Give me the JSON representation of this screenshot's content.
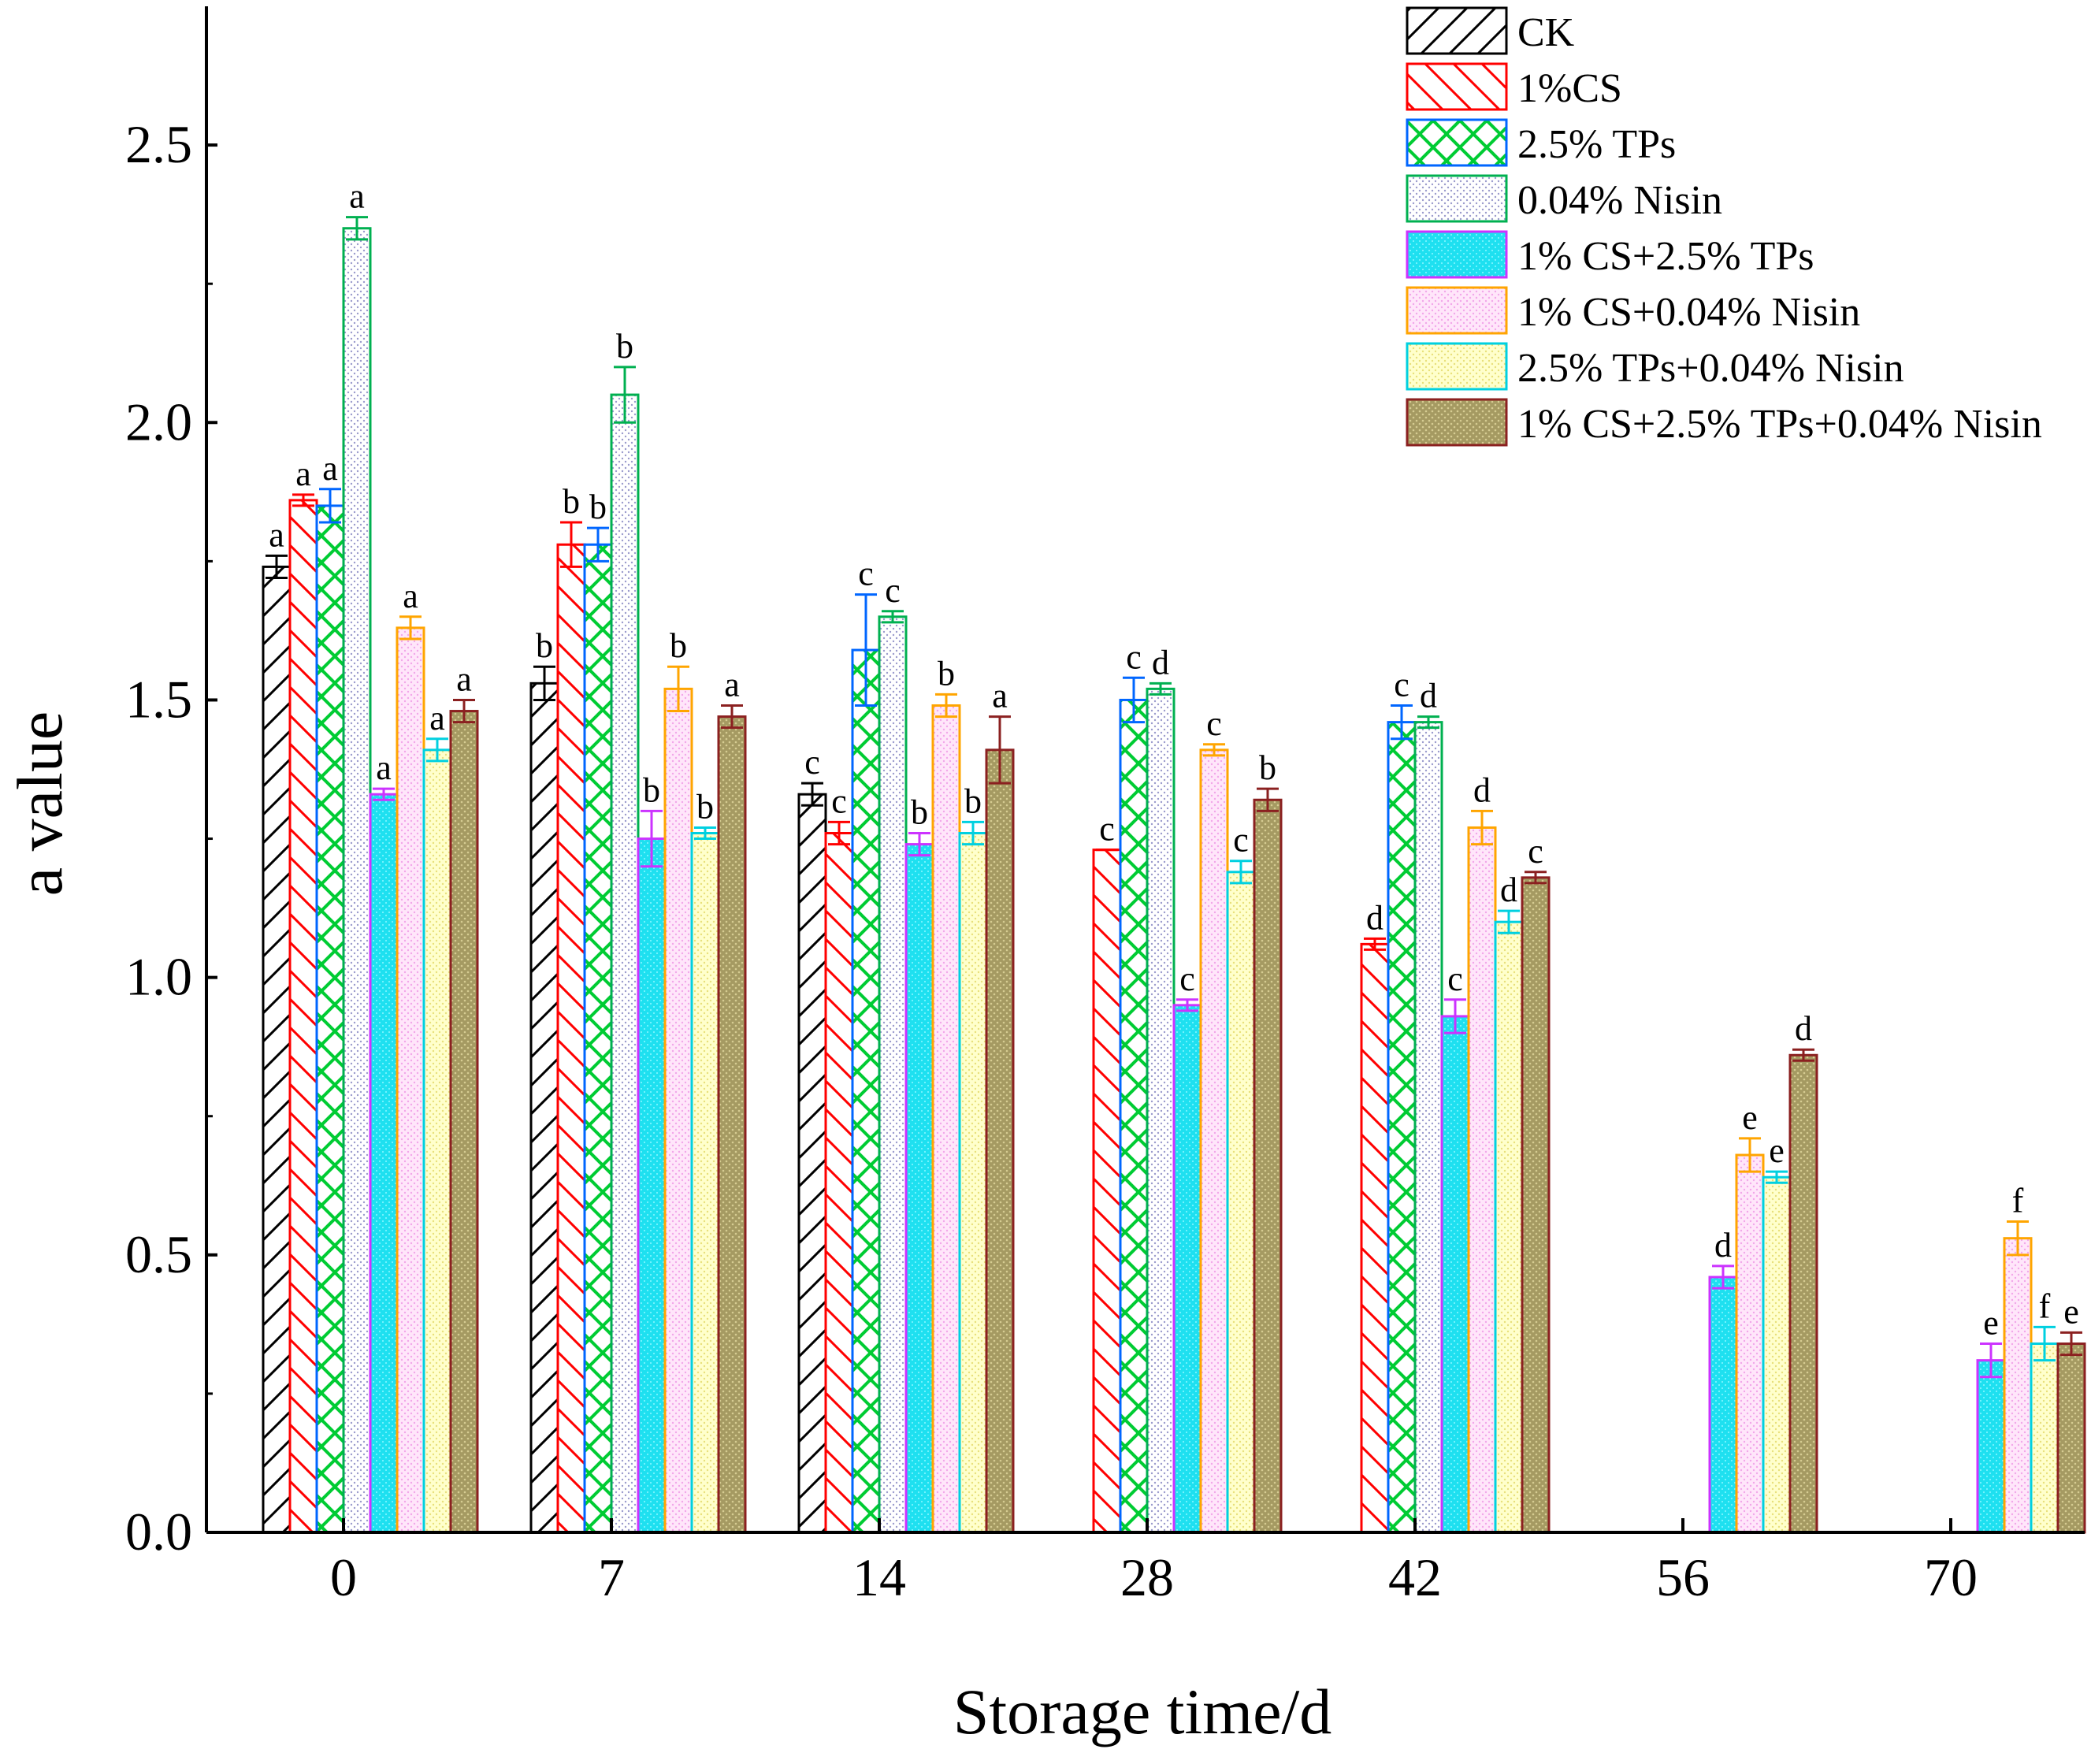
{
  "chart_data": {
    "type": "bar",
    "title": "",
    "xlabel": "Storage time/d",
    "ylabel": "a value",
    "ylim": [
      0,
      2.75
    ],
    "yticks": [
      "0.0",
      "0.5",
      "1.0",
      "1.5",
      "2.0",
      "2.5"
    ],
    "categories": [
      "0",
      "7",
      "14",
      "28",
      "42",
      "56",
      "70"
    ],
    "legend_position": "top-right",
    "series": [
      {
        "name": "CK",
        "color": "#000000",
        "pattern": "diag-right",
        "values": [
          1.74,
          1.53,
          1.33,
          null,
          null,
          null,
          null
        ],
        "errors": [
          0.02,
          0.03,
          0.02,
          null,
          null,
          null,
          null
        ],
        "letters": [
          "a",
          "b",
          "c",
          null,
          null,
          null,
          null
        ]
      },
      {
        "name": "1%CS",
        "color": "#ff0000",
        "pattern": "diag-left",
        "values": [
          1.86,
          1.78,
          1.26,
          1.23,
          1.06,
          null,
          null
        ],
        "errors": [
          0.01,
          0.04,
          0.02,
          0.0,
          0.01,
          null,
          null
        ],
        "letters": [
          "a",
          "b",
          "c",
          "c",
          "d",
          null,
          null
        ]
      },
      {
        "name": "2.5% TPs",
        "color": "#0066ff",
        "pattern": "cross",
        "values": [
          1.85,
          1.78,
          1.59,
          1.5,
          1.46,
          null,
          null
        ],
        "errors": [
          0.03,
          0.03,
          0.1,
          0.04,
          0.03,
          null,
          null
        ],
        "letters": [
          "a",
          "b",
          "c",
          "c",
          "c",
          null,
          null
        ]
      },
      {
        "name": "0.04% Nisin",
        "color": "#00b050",
        "pattern": "dots",
        "values": [
          2.35,
          2.05,
          1.65,
          1.52,
          1.46,
          null,
          null
        ],
        "errors": [
          0.02,
          0.05,
          0.01,
          0.01,
          0.01,
          null,
          null
        ],
        "letters": [
          "a",
          "b",
          "c",
          "d",
          "d",
          null,
          null
        ]
      },
      {
        "name": "1% CS+2.5% TPs",
        "color": "#cc33ff",
        "pattern": "cyan",
        "values": [
          1.33,
          1.25,
          1.24,
          0.95,
          0.93,
          0.46,
          0.31
        ],
        "errors": [
          0.01,
          0.05,
          0.02,
          0.01,
          0.03,
          0.02,
          0.03
        ],
        "letters": [
          "a",
          "b",
          "b",
          "c",
          "c",
          "d",
          "e"
        ]
      },
      {
        "name": "1% CS+0.04% Nisin",
        "color": "#ffa500",
        "pattern": "pink",
        "values": [
          1.63,
          1.52,
          1.49,
          1.41,
          1.27,
          0.68,
          0.53
        ],
        "errors": [
          0.02,
          0.04,
          0.02,
          0.01,
          0.03,
          0.03,
          0.03
        ],
        "letters": [
          "a",
          "b",
          "b",
          "c",
          "d",
          "e",
          "f"
        ]
      },
      {
        "name": "2.5% TPs+0.04% Nisin",
        "color": "#00d0e0",
        "pattern": "yellow",
        "values": [
          1.41,
          1.26,
          1.26,
          1.19,
          1.1,
          0.64,
          0.34
        ],
        "errors": [
          0.02,
          0.01,
          0.02,
          0.02,
          0.02,
          0.01,
          0.03
        ],
        "letters": [
          "a",
          "b",
          "b",
          "c",
          "d",
          "e",
          "f"
        ]
      },
      {
        "name": "1% CS+2.5% TPs+0.04% Nisin",
        "color": "#8b2020",
        "pattern": "olive",
        "values": [
          1.48,
          1.47,
          1.41,
          1.32,
          1.18,
          0.86,
          0.34
        ],
        "errors": [
          0.02,
          0.02,
          0.06,
          0.02,
          0.01,
          0.01,
          0.02
        ],
        "letters": [
          "a",
          "a",
          "a",
          "b",
          "c",
          "d",
          "e"
        ]
      }
    ]
  }
}
